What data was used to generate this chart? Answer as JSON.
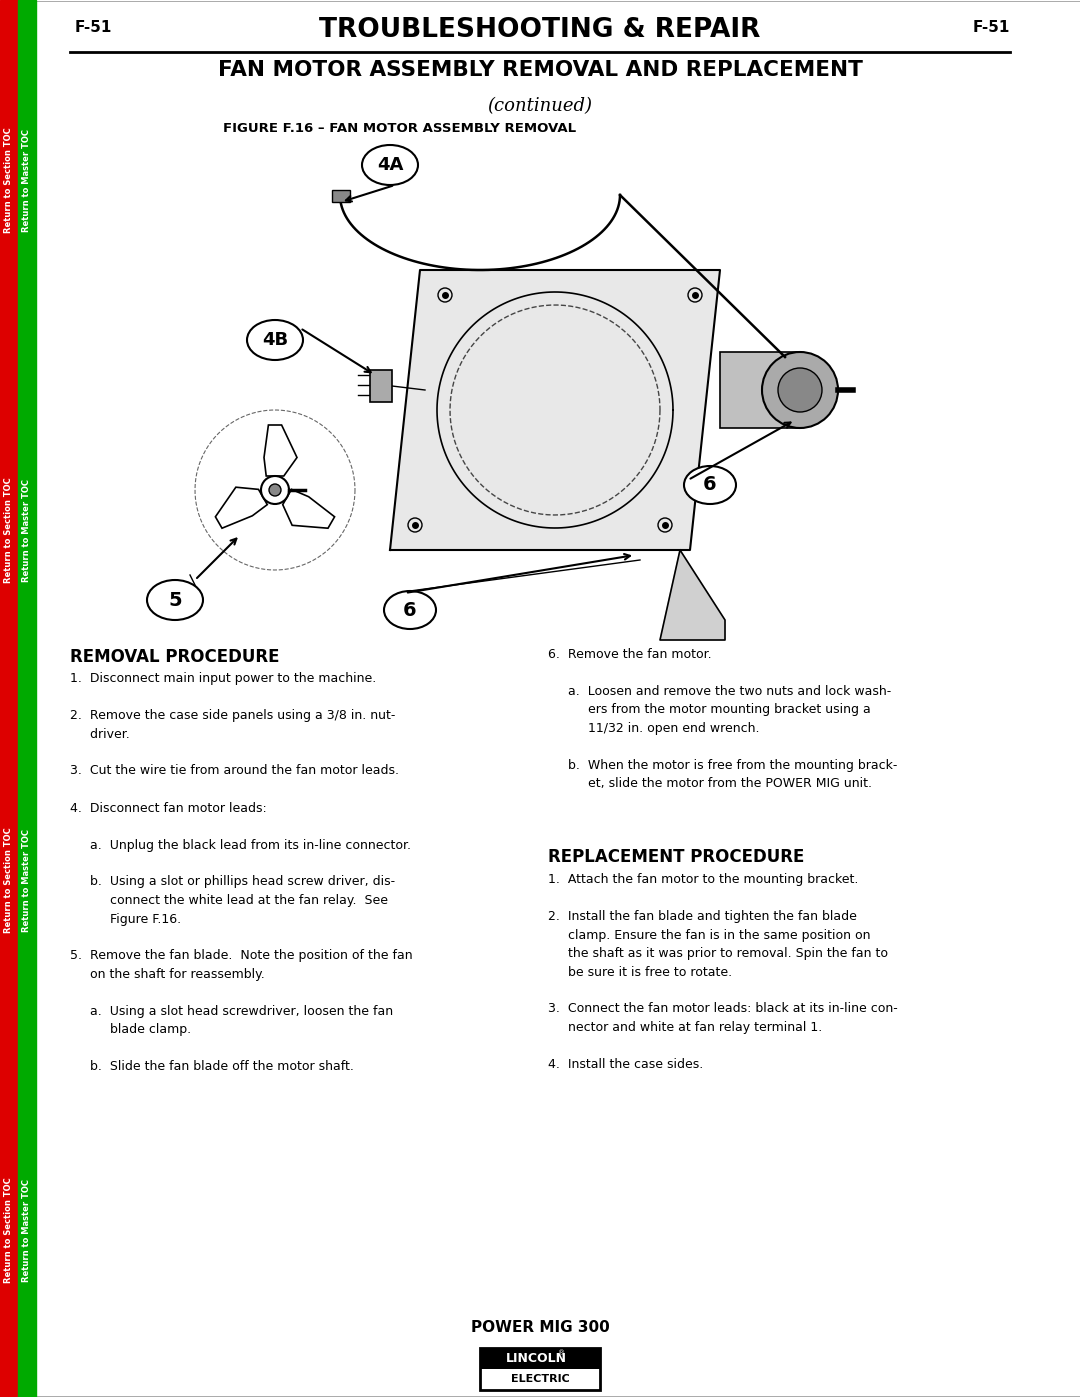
{
  "page_number": "F-51",
  "header_title": "TROUBLESHOOTING & REPAIR",
  "main_title": "FAN MOTOR ASSEMBLY REMOVAL AND REPLACEMENT",
  "subtitle": "(continued)",
  "figure_caption": "FIGURE F.16 – FAN MOTOR ASSEMBLY REMOVAL",
  "removal_heading": "REMOVAL PROCEDURE",
  "removal_text": "1.  Disconnect main input power to the machine.\n\n2.  Remove the case side panels using a 3/8 in. nut-\n     driver.\n\n3.  Cut the wire tie from around the fan motor leads.\n\n4.  Disconnect fan motor leads:\n\n     a.  Unplug the black lead from its in-line connector.\n\n     b.  Using a slot or phillips head screw driver, dis-\n          connect the white lead at the fan relay.  See\n          Figure F.16.\n\n5.  Remove the fan blade.  Note the position of the fan\n     on the shaft for reassembly.\n\n     a.  Using a slot head screwdriver, loosen the fan\n          blade clamp.\n\n     b.  Slide the fan blade off the motor shaft.",
  "right_step6": "6.  Remove the fan motor.\n\n     a.  Loosen and remove the two nuts and lock wash-\n          ers from the motor mounting bracket using a\n          11/32 in. open end wrench.\n\n     b.  When the motor is free from the mounting brack-\n          et, slide the motor from the POWER MIG unit.",
  "replacement_heading": "REPLACEMENT PROCEDURE",
  "replacement_text": "1.  Attach the fan motor to the mounting bracket.\n\n2.  Install the fan blade and tighten the fan blade\n     clamp. Ensure the fan is in the same position on\n     the shaft as it was prior to removal. Spin the fan to\n     be sure it is free to rotate.\n\n3.  Connect the fan motor leads: black at its in-line con-\n     nector and white at fan relay terminal 1.\n\n4.  Install the case sides.",
  "footer_model": "POWER MIG 300",
  "bg_color": "#ffffff",
  "text_color": "#000000",
  "red_color": "#dd0000",
  "green_color": "#00aa00"
}
